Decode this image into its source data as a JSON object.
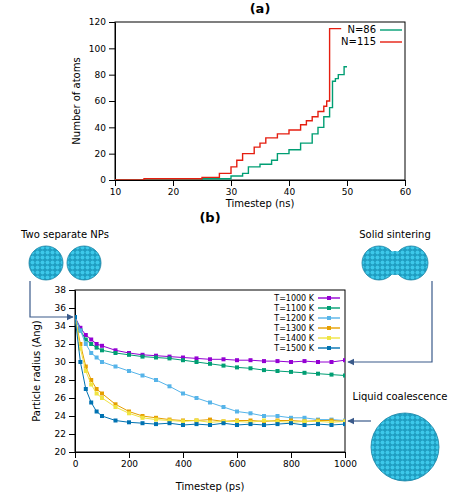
{
  "chart_data": [
    {
      "type": "line",
      "title": "(a)",
      "x_label": "Timestep (ns)",
      "y_label": "Number of atoms",
      "xlim": [
        10,
        60
      ],
      "xticks": [
        10,
        20,
        30,
        40,
        50,
        60
      ],
      "ylim": [
        0,
        120
      ],
      "yticks": [
        0,
        20,
        40,
        60,
        80,
        100,
        120
      ],
      "grid": false,
      "legend": "upper right",
      "series": [
        {
          "name": "N=86",
          "color": "#009e73",
          "line_style": "step",
          "x": [
            10,
            20,
            25,
            28,
            30,
            32,
            33,
            35,
            37,
            38,
            40,
            42,
            44,
            45,
            46,
            47,
            47.5,
            48,
            48.5,
            49,
            49.5,
            50
          ],
          "values": [
            0,
            0,
            1,
            1,
            3,
            5,
            10,
            12,
            15,
            20,
            23,
            28,
            35,
            40,
            48,
            55,
            75,
            77,
            80,
            80,
            86,
            86
          ]
        },
        {
          "name": "N=115",
          "color": "#e51e10",
          "line_style": "step",
          "x": [
            10,
            15,
            20,
            25,
            28,
            30,
            31,
            32,
            34,
            35,
            36,
            38,
            40,
            42,
            43,
            44,
            45,
            46,
            46.5,
            47,
            49
          ],
          "values": [
            0,
            1,
            1,
            2,
            5,
            10,
            15,
            20,
            25,
            28,
            32,
            35,
            38,
            42,
            45,
            48,
            52,
            56,
            60,
            115,
            115
          ]
        }
      ]
    },
    {
      "type": "line",
      "title": "(b)",
      "x_label": "Timestep (ps)",
      "y_label": "Particle radius (Ang)",
      "xlim": [
        0,
        1000
      ],
      "xticks": [
        0,
        200,
        400,
        600,
        800,
        1000
      ],
      "ylim": [
        20,
        38
      ],
      "yticks": [
        20,
        22,
        24,
        26,
        28,
        30,
        32,
        34,
        36,
        38
      ],
      "grid": false,
      "legend": "upper right",
      "annotations": [
        "Two separate NPs",
        "Solid sintering",
        "Liquid coalescence"
      ],
      "x": [
        0,
        20,
        40,
        60,
        80,
        100,
        150,
        200,
        250,
        300,
        350,
        400,
        450,
        500,
        550,
        600,
        650,
        700,
        750,
        800,
        850,
        900,
        950,
        1000
      ],
      "series": [
        {
          "name": "T=1000 K",
          "color": "#9400d3",
          "marker": "square",
          "values": [
            35,
            33.8,
            33,
            32.5,
            32,
            31.8,
            31.3,
            31,
            30.8,
            30.7,
            30.6,
            30.5,
            30.4,
            30.3,
            30.3,
            30.2,
            30.2,
            30.1,
            30.1,
            30.0,
            30.1,
            30.0,
            30.0,
            30.2
          ]
        },
        {
          "name": "T=1100 K",
          "color": "#009e73",
          "marker": "square",
          "values": [
            35,
            33.5,
            32.5,
            32,
            31.6,
            31.3,
            31,
            30.8,
            30.6,
            30.5,
            30.4,
            30.2,
            30.0,
            29.8,
            29.6,
            29.4,
            29.3,
            29.1,
            29.0,
            28.9,
            28.8,
            28.7,
            28.6,
            28.5
          ]
        },
        {
          "name": "T=1200 K",
          "color": "#56b4e9",
          "marker": "square",
          "values": [
            35,
            33.5,
            32,
            31,
            30.5,
            30,
            29.5,
            29,
            28.5,
            28,
            27.3,
            26.5,
            26,
            25.5,
            25,
            24.5,
            24.3,
            24,
            24,
            23.8,
            23.8,
            23.6,
            23.6,
            23.5
          ]
        },
        {
          "name": "T=1300 K",
          "color": "#e69f00",
          "marker": "square",
          "values": [
            35,
            32,
            29.5,
            28,
            27,
            26.5,
            25.3,
            24.5,
            24,
            23.8,
            23.6,
            23.5,
            23.5,
            23.6,
            23.4,
            23.5,
            23.5,
            23.4,
            23.5,
            23.5,
            23.4,
            23.5,
            23.5,
            23.4
          ]
        },
        {
          "name": "T=1400 K",
          "color": "#f0e442",
          "marker": "square",
          "values": [
            35,
            31.5,
            29,
            27.5,
            26.5,
            26,
            25,
            24.3,
            23.8,
            23.6,
            23.5,
            23.4,
            23.5,
            23.3,
            23.4,
            23.4,
            23.3,
            23.5,
            23.4,
            23.3,
            23.4,
            23.4,
            23.3,
            23.4
          ]
        },
        {
          "name": "T=1500 K",
          "color": "#0072b2",
          "marker": "square",
          "values": [
            35,
            30,
            27,
            25.5,
            24.5,
            24,
            23.5,
            23.3,
            23.2,
            23.1,
            23.2,
            23.0,
            23.1,
            23.0,
            23.2,
            23.0,
            23.1,
            23.0,
            23.1,
            23.2,
            23.0,
            23.1,
            23.0,
            23.1
          ]
        }
      ]
    }
  ]
}
